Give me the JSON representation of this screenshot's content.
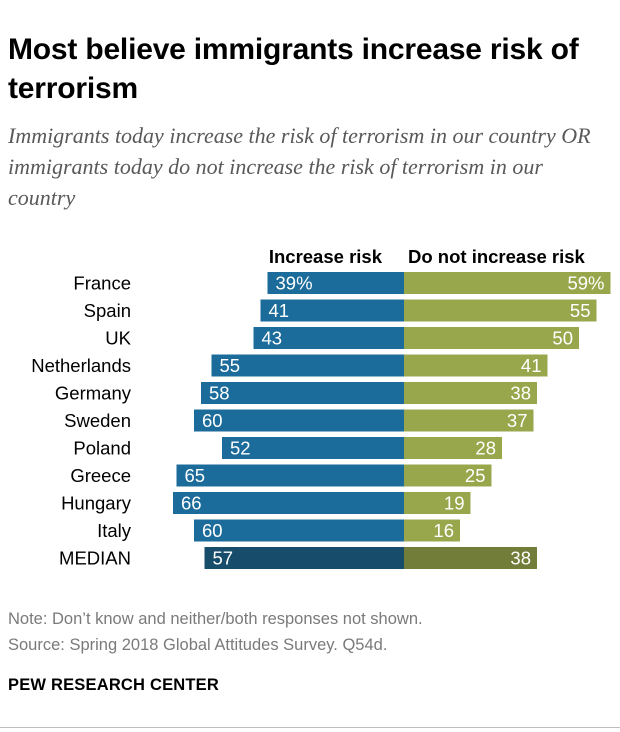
{
  "title": "Most believe immigrants increase risk of terrorism",
  "subtitle": "Immigrants today increase the risk of terrorism in our country OR immigrants today do not increase the risk of terrorism in our country",
  "notes": {
    "note": "Note: Don’t know and neither/both responses not shown.",
    "source": "Source: Spring 2018 Global Attitudes Survey. Q54d."
  },
  "org": "PEW RESEARCH CENTER",
  "colors": {
    "increase": "#1b6b9b",
    "not_increase": "#99a74c",
    "median_increase": "#174d6b",
    "median_not_increase": "#737d3a"
  },
  "chart_data": {
    "type": "bar",
    "orientation": "horizontal-diverging",
    "title": "Most believe immigrants increase risk of terrorism",
    "categories": [
      "France",
      "Spain",
      "UK",
      "Netherlands",
      "Germany",
      "Sweden",
      "Poland",
      "Greece",
      "Hungary",
      "Italy",
      "MEDIAN"
    ],
    "series": [
      {
        "name": "Increase risk",
        "values": [
          39,
          41,
          43,
          55,
          58,
          60,
          52,
          65,
          66,
          60,
          57
        ],
        "labels": [
          "39%",
          "41",
          "43",
          "55",
          "58",
          "60",
          "52",
          "65",
          "66",
          "60",
          "57"
        ]
      },
      {
        "name": "Do not increase risk",
        "values": [
          59,
          55,
          50,
          41,
          38,
          37,
          28,
          25,
          19,
          16,
          38
        ],
        "labels": [
          "59%",
          "55",
          "50",
          "41",
          "38",
          "37",
          "28",
          "25",
          "19",
          "16",
          "38"
        ]
      }
    ],
    "xlim": [
      -70,
      70
    ],
    "xlabel": "",
    "ylabel": ""
  }
}
